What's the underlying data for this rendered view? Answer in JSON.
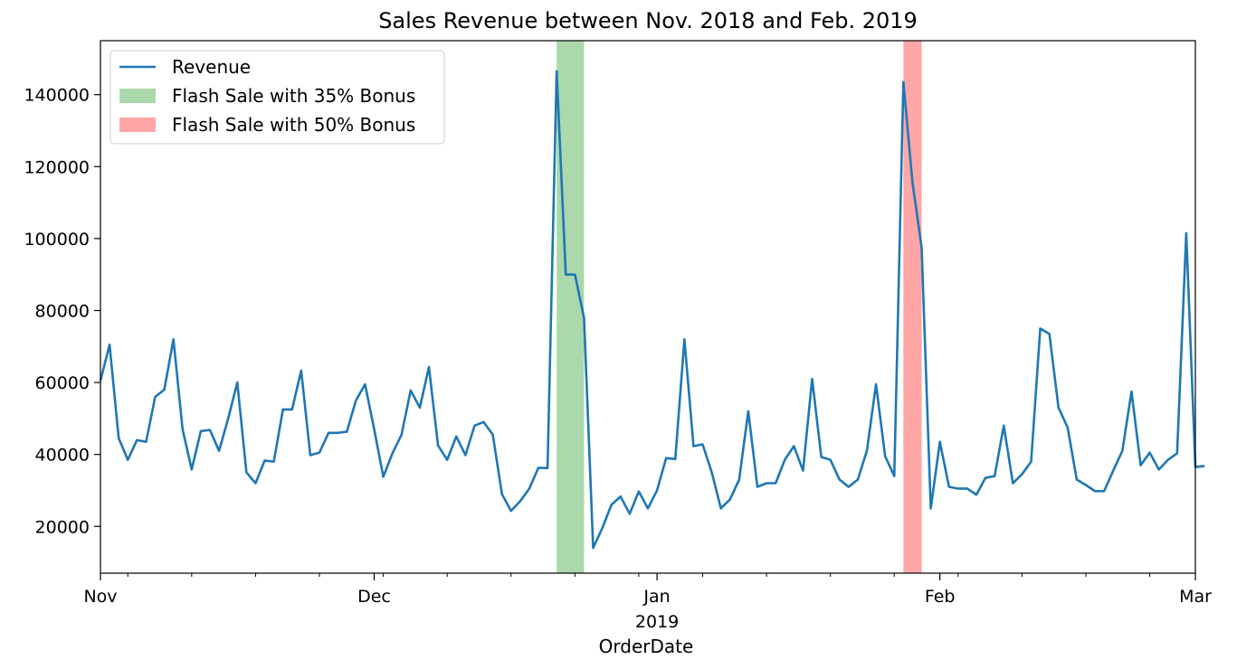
{
  "chart_data": {
    "type": "line",
    "title": "Sales Revenue between Nov. 2018 and Feb. 2019",
    "xlabel": "OrderDate",
    "ylabel": "",
    "xlim": [
      "2018-11-01",
      "2019-03-01"
    ],
    "ylim": [
      7000,
      155000
    ],
    "grid": false,
    "legend_position": "upper-left",
    "x_ticks": [
      {
        "date": "2018-11-01",
        "label": "Nov"
      },
      {
        "date": "2018-12-01",
        "label": "Dec"
      },
      {
        "date": "2019-01-01",
        "label": "Jan",
        "sublabel": "2019"
      },
      {
        "date": "2019-02-01",
        "label": "Feb"
      },
      {
        "date": "2019-03-01",
        "label": "Mar"
      }
    ],
    "y_ticks": [
      20000,
      40000,
      60000,
      80000,
      100000,
      120000,
      140000
    ],
    "series": [
      {
        "name": "Revenue",
        "color": "#1f77b4",
        "start_date": "2018-11-01",
        "frequency": "daily",
        "values": [
          60500,
          70500,
          44500,
          38500,
          44000,
          43500,
          56000,
          58000,
          72000,
          47000,
          35800,
          46500,
          46800,
          41000,
          50000,
          60000,
          35000,
          32000,
          38300,
          38000,
          52500,
          52500,
          63300,
          39800,
          40500,
          46000,
          46000,
          46300,
          55000,
          59500,
          47000,
          33800,
          40300,
          45500,
          57800,
          53000,
          64300,
          42500,
          38500,
          45000,
          39800,
          48000,
          49000,
          45500,
          29000,
          24300,
          27000,
          30500,
          36300,
          36200,
          146500,
          90000,
          90000,
          78000,
          14000,
          19500,
          26000,
          28300,
          23500,
          29700,
          25000,
          30000,
          39000,
          38700,
          72000,
          42300,
          42800,
          35000,
          25000,
          27500,
          33000,
          52000,
          31000,
          32000,
          32000,
          38500,
          42300,
          35500,
          61000,
          39300,
          38500,
          33000,
          31000,
          33000,
          41000,
          59500,
          39500,
          34000,
          143500,
          115500,
          97500,
          25000,
          43500,
          31000,
          30500,
          30500,
          28800,
          33500,
          34000,
          48000,
          32000,
          34500,
          38000,
          75000,
          73500,
          53000,
          47500,
          33000,
          31500,
          29800,
          29800,
          35500,
          41000,
          57500,
          37000,
          40500,
          35800,
          38500,
          40300,
          101500,
          36500,
          36800
        ]
      }
    ],
    "spans": [
      {
        "name": "Flash Sale with 35% Bonus",
        "start": "2018-12-21",
        "end": "2018-12-24",
        "color": "#2ca02c",
        "alpha": 0.4
      },
      {
        "name": "Flash Sale with 50% Bonus",
        "start": "2019-01-28",
        "end": "2019-01-30",
        "color": "#ff0000",
        "alpha": 0.35
      }
    ]
  }
}
